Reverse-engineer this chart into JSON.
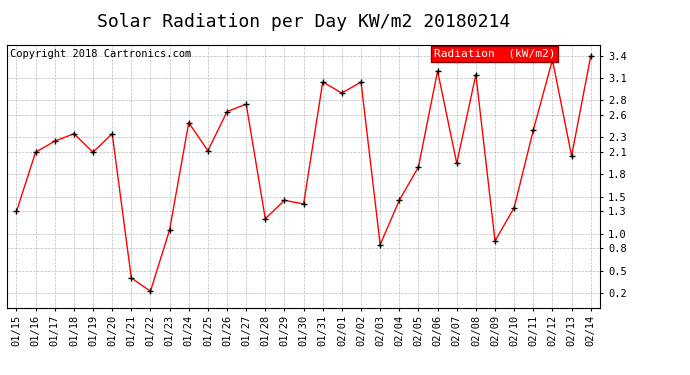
{
  "title": "Solar Radiation per Day KW/m2 20180214",
  "copyright_text": "Copyright 2018 Cartronics.com",
  "legend_label": "Radiation  (kW/m2)",
  "dates": [
    "01/15",
    "01/16",
    "01/17",
    "01/18",
    "01/19",
    "01/20",
    "01/21",
    "01/22",
    "01/23",
    "01/24",
    "01/25",
    "01/26",
    "01/27",
    "01/28",
    "01/29",
    "01/30",
    "01/31",
    "02/01",
    "02/02",
    "02/03",
    "02/04",
    "02/05",
    "02/06",
    "02/07",
    "02/08",
    "02/09",
    "02/10",
    "02/11",
    "02/12",
    "02/13",
    "02/14"
  ],
  "values": [
    1.3,
    2.1,
    2.25,
    2.35,
    2.1,
    2.35,
    0.4,
    0.22,
    1.05,
    2.5,
    2.12,
    2.65,
    2.75,
    1.2,
    1.45,
    1.4,
    3.05,
    2.9,
    3.05,
    0.85,
    1.45,
    1.9,
    3.2,
    1.95,
    3.15,
    0.9,
    1.35,
    2.4,
    3.35,
    2.05,
    3.4
  ],
  "line_color": "red",
  "marker_color": "black",
  "marker": "+",
  "ylim": [
    0.0,
    3.55
  ],
  "yticks": [
    0.2,
    0.5,
    0.8,
    1.0,
    1.3,
    1.5,
    1.8,
    2.1,
    2.3,
    2.6,
    2.8,
    3.1,
    3.4
  ],
  "bg_color": "white",
  "grid_color": "#bbbbbb",
  "title_fontsize": 13,
  "tick_fontsize": 7.5,
  "copyright_fontsize": 7.5,
  "legend_fontsize": 8,
  "legend_bg": "red",
  "legend_fg": "white"
}
